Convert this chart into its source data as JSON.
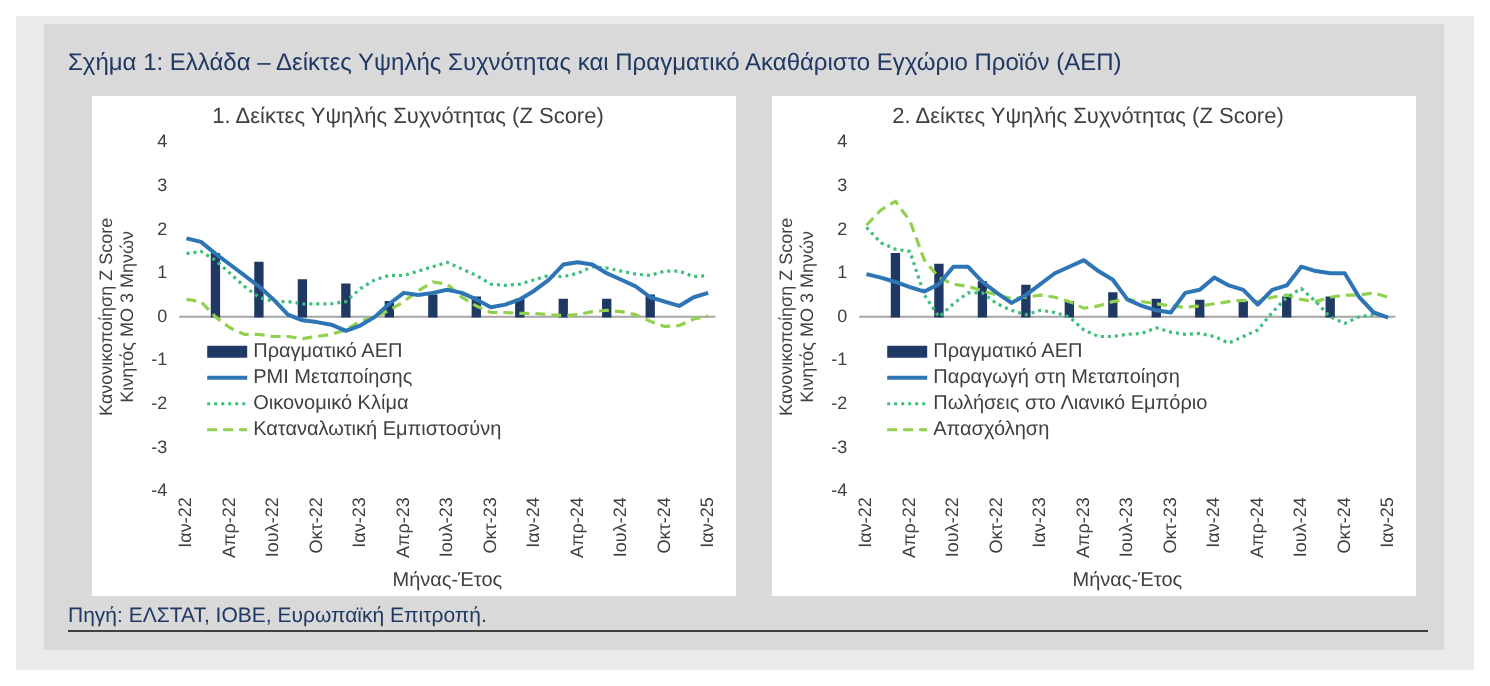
{
  "chart_data": [
    {
      "type": "line",
      "title": "Σχήμα 1: Ελλάδα – Δείκτες Υψηλής Συχνότητας και Πραγματικό Ακαθάριστο Εγχώριο Προϊόν (ΑΕΠ)",
      "subtitle": "1. Δείκτες Υψηλής Συχνότητας (Z Score)",
      "xlabel": "Μήνας-Έτος",
      "ylabel": "Κανονικοποίηση Z Score\nΚινητός ΜΟ 3 Μηνών",
      "annotations": [
        "Πηγή: ΕΛΣΤΑΤ, ΙΟΒΕ, Ευρωπαϊκή Επιτροπή."
      ],
      "categories": [
        "Ιαν-22",
        null,
        null,
        "Απρ-22",
        null,
        null,
        "Ιουλ-22",
        null,
        null,
        "Οκτ-22",
        null,
        null,
        "Ιαν-23",
        null,
        null,
        "Απρ-23",
        null,
        null,
        "Ιουλ-23",
        null,
        null,
        "Οκτ-23",
        null,
        null,
        "Ιαν-24",
        null,
        null,
        "Απρ-24",
        null,
        null,
        "Ιουλ-24",
        null,
        null,
        "Οκτ-24",
        null,
        null,
        "Ιαν-25"
      ],
      "ylim": [
        -4,
        4
      ],
      "yticks": [
        -4,
        -3,
        -2,
        -1,
        0,
        1,
        2,
        3,
        4
      ],
      "grid": false,
      "legend": "bottom left",
      "ref_lines": [
        {
          "axis": "y",
          "value": 0,
          "color": "#a6a6a6"
        }
      ],
      "series": [
        {
          "name": "Πραγματικό ΑΕΠ",
          "type": "bar",
          "color": "#1f3864",
          "values": [
            null,
            null,
            1.45,
            null,
            null,
            1.25,
            null,
            null,
            0.85,
            null,
            null,
            0.75,
            null,
            null,
            0.35,
            null,
            null,
            0.5,
            null,
            null,
            0.45,
            null,
            null,
            0.4,
            null,
            null,
            0.4,
            null,
            null,
            0.4,
            null,
            null,
            0.5,
            null,
            null,
            null,
            null
          ]
        },
        {
          "name": "PMI Μεταποίησης",
          "line_style": "solid",
          "color": "#2e75b6",
          "values": [
            1.8,
            1.72,
            1.45,
            1.2,
            0.95,
            0.7,
            0.4,
            0.05,
            -0.08,
            -0.12,
            -0.18,
            -0.32,
            -0.2,
            0.0,
            0.3,
            0.55,
            0.5,
            0.55,
            0.62,
            0.55,
            0.4,
            0.22,
            0.28,
            0.4,
            0.6,
            0.85,
            1.2,
            1.25,
            1.2,
            1.0,
            0.85,
            0.7,
            0.45,
            0.35,
            0.25,
            0.45,
            0.55
          ]
        },
        {
          "name": "Οικονομικό Κλίμα",
          "line_style": "dotted",
          "color": "#3cbf7a",
          "values": [
            1.45,
            1.5,
            1.3,
            1.0,
            0.7,
            0.45,
            0.35,
            0.35,
            0.3,
            0.3,
            0.3,
            0.35,
            0.65,
            0.85,
            0.95,
            0.95,
            1.05,
            1.15,
            1.25,
            1.1,
            0.95,
            0.75,
            0.72,
            0.75,
            0.85,
            0.95,
            0.92,
            1.0,
            1.15,
            1.12,
            1.05,
            0.98,
            0.95,
            1.05,
            1.05,
            0.92,
            0.95
          ]
        },
        {
          "name": "Καταναλωτική Εμπιστοσύνη",
          "line_style": "dashed",
          "color": "#92d050",
          "values": [
            0.4,
            0.35,
            0.0,
            -0.25,
            -0.4,
            -0.4,
            -0.45,
            -0.45,
            -0.5,
            -0.45,
            -0.4,
            -0.3,
            -0.1,
            0.0,
            0.15,
            0.35,
            0.6,
            0.8,
            0.75,
            0.45,
            0.25,
            0.1,
            0.1,
            0.08,
            0.08,
            0.05,
            0.03,
            0.05,
            0.12,
            0.15,
            0.12,
            0.05,
            -0.1,
            -0.22,
            -0.2,
            -0.05,
            0.02
          ]
        }
      ]
    },
    {
      "type": "line",
      "subtitle": "2. Δείκτες Υψηλής Συχνότητας (Z Score)",
      "xlabel": "Μήνας-Έτος",
      "ylabel": "Κανονικοποίηση Z Score\nΚινητός ΜΟ 3 Μηνών",
      "categories": [
        "Ιαν-22",
        null,
        null,
        "Απρ-22",
        null,
        null,
        "Ιουλ-22",
        null,
        null,
        "Οκτ-22",
        null,
        null,
        "Ιαν-23",
        null,
        null,
        "Απρ-23",
        null,
        null,
        "Ιουλ-23",
        null,
        null,
        "Οκτ-23",
        null,
        null,
        "Ιαν-24",
        null,
        null,
        "Απρ-24",
        null,
        null,
        "Ιουλ-24",
        null,
        null,
        "Οκτ-24",
        null,
        null,
        "Ιαν-25"
      ],
      "ylim": [
        -4,
        4
      ],
      "yticks": [
        -4,
        -3,
        -2,
        -1,
        0,
        1,
        2,
        3,
        4
      ],
      "grid": false,
      "legend": "bottom left",
      "ref_lines": [
        {
          "axis": "y",
          "value": 0,
          "color": "#a6a6a6"
        }
      ],
      "series": [
        {
          "name": "Πραγματικό ΑΕΠ",
          "type": "bar",
          "color": "#1f3864",
          "values": [
            null,
            null,
            1.45,
            null,
            null,
            1.2,
            null,
            null,
            0.8,
            null,
            null,
            0.72,
            null,
            null,
            0.35,
            null,
            null,
            0.55,
            null,
            null,
            0.4,
            null,
            null,
            0.38,
            null,
            null,
            0.35,
            null,
            null,
            0.45,
            null,
            null,
            0.45,
            null,
            null,
            null,
            null
          ]
        },
        {
          "name": "Παραγωγή στη Μεταποίηση",
          "line_style": "solid",
          "color": "#2e75b6",
          "values": [
            0.98,
            0.9,
            0.8,
            0.68,
            0.58,
            0.75,
            1.15,
            1.15,
            0.8,
            0.55,
            0.32,
            0.5,
            0.75,
            1.0,
            1.15,
            1.3,
            1.05,
            0.85,
            0.4,
            0.25,
            0.15,
            0.1,
            0.55,
            0.62,
            0.9,
            0.72,
            0.62,
            0.28,
            0.62,
            0.72,
            1.15,
            1.05,
            1.0,
            1.0,
            0.45,
            0.1,
            -0.02
          ]
        },
        {
          "name": "Πωλήσεις στο Λιανικό Εμπόριο",
          "line_style": "dotted",
          "color": "#3cbf7a",
          "values": [
            2.05,
            1.7,
            1.55,
            1.5,
            0.5,
            0.0,
            0.3,
            0.55,
            0.55,
            0.3,
            0.15,
            0.05,
            0.15,
            0.1,
            0.0,
            -0.3,
            -0.45,
            -0.45,
            -0.4,
            -0.38,
            -0.25,
            -0.35,
            -0.4,
            -0.38,
            -0.45,
            -0.6,
            -0.45,
            -0.3,
            0.1,
            0.45,
            0.65,
            0.35,
            0.0,
            -0.15,
            0.0,
            0.05,
            null
          ]
        },
        {
          "name": "Απασχόληση",
          "line_style": "dashed",
          "color": "#92d050",
          "values": [
            2.1,
            2.45,
            2.65,
            2.2,
            1.3,
            0.9,
            0.75,
            0.7,
            0.6,
            0.5,
            0.42,
            0.45,
            0.5,
            0.45,
            0.35,
            0.2,
            0.25,
            0.35,
            0.4,
            0.35,
            0.3,
            0.25,
            0.22,
            0.25,
            0.3,
            0.35,
            0.38,
            0.35,
            0.45,
            0.5,
            0.4,
            0.35,
            0.45,
            0.5,
            0.5,
            0.55,
            0.45
          ]
        }
      ]
    }
  ]
}
